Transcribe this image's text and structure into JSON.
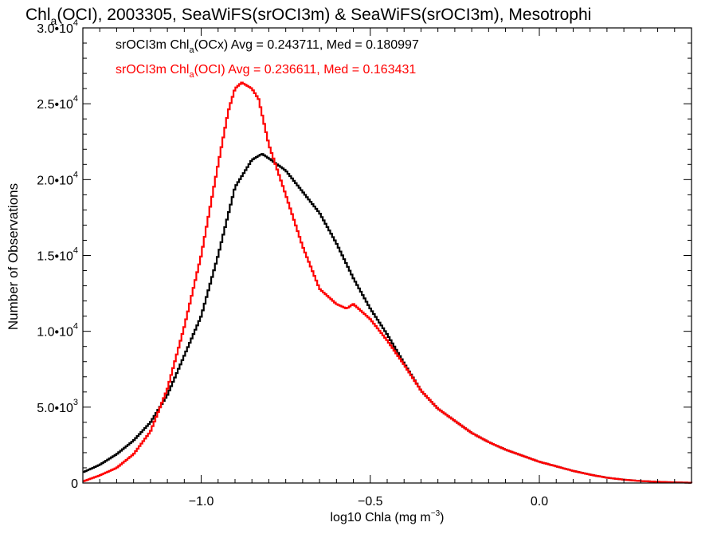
{
  "chart_data": {
    "type": "line",
    "title": {
      "pre": "Chl",
      "sub": "a",
      "post": "(OCI), 2003305, SeaWiFS(srOCI3m) & SeaWiFS(srOCI3m), Mesotrophi"
    },
    "xlabel": {
      "pre": "log10 Chla (mg m",
      "sup": "−3",
      "post": ")"
    },
    "ylabel": "Number of Observations",
    "xlim": [
      -1.35,
      0.45
    ],
    "ylim": [
      0,
      30000
    ],
    "x_ticks": [
      {
        "value": -1.0,
        "label": "−1.0"
      },
      {
        "value": -0.5,
        "label": "−0.5"
      },
      {
        "value": 0.0,
        "label": "0.0"
      }
    ],
    "y_ticks": [
      {
        "value": 0,
        "mant": "0",
        "exp": ""
      },
      {
        "value": 5000,
        "mant": "5.0•10",
        "exp": "3"
      },
      {
        "value": 10000,
        "mant": "1.0•10",
        "exp": "4"
      },
      {
        "value": 15000,
        "mant": "1.5•10",
        "exp": "4"
      },
      {
        "value": 20000,
        "mant": "2.0•10",
        "exp": "4"
      },
      {
        "value": 25000,
        "mant": "2.5•10",
        "exp": "4"
      },
      {
        "value": 30000,
        "mant": "3.0•10",
        "exp": "4"
      }
    ],
    "grid": false,
    "series": [
      {
        "legend": {
          "pre": "srOCI3m Chl",
          "sub": "a",
          "post": "(OCx) Avg = 0.243711, Med = 0.180997"
        },
        "color": "#000000",
        "x": [
          -1.35,
          -1.3,
          -1.25,
          -1.2,
          -1.15,
          -1.1,
          -1.05,
          -1.0,
          -0.95,
          -0.9,
          -0.85,
          -0.82,
          -0.8,
          -0.75,
          -0.7,
          -0.65,
          -0.6,
          -0.55,
          -0.5,
          -0.45,
          -0.4,
          -0.35,
          -0.3,
          -0.25,
          -0.2,
          -0.15,
          -0.1,
          -0.05,
          0.0,
          0.05,
          0.1,
          0.15,
          0.2,
          0.25,
          0.3,
          0.35,
          0.4,
          0.45
        ],
        "y": [
          700,
          1200,
          1900,
          2800,
          4000,
          5800,
          8400,
          11000,
          15000,
          19500,
          21300,
          21700,
          21400,
          20600,
          19200,
          17800,
          15800,
          13500,
          11500,
          9800,
          7900,
          6100,
          4900,
          4100,
          3300,
          2700,
          2200,
          1800,
          1400,
          1100,
          800,
          550,
          350,
          220,
          130,
          80,
          40,
          20
        ]
      },
      {
        "legend": {
          "pre": "srOCI3m Chl",
          "sub": "a",
          "post": "(OCI) Avg = 0.236611, Med = 0.163431"
        },
        "color": "#ff0000",
        "x": [
          -1.35,
          -1.3,
          -1.25,
          -1.2,
          -1.15,
          -1.1,
          -1.05,
          -1.0,
          -0.95,
          -0.92,
          -0.9,
          -0.88,
          -0.85,
          -0.83,
          -0.8,
          -0.75,
          -0.7,
          -0.65,
          -0.6,
          -0.57,
          -0.55,
          -0.5,
          -0.45,
          -0.4,
          -0.35,
          -0.3,
          -0.25,
          -0.2,
          -0.15,
          -0.1,
          -0.05,
          0.0,
          0.05,
          0.1,
          0.15,
          0.2,
          0.25,
          0.3,
          0.35,
          0.4,
          0.45
        ],
        "y": [
          100,
          500,
          1000,
          1900,
          3400,
          6200,
          10300,
          15000,
          21000,
          24500,
          26000,
          26400,
          26000,
          25300,
          22300,
          19000,
          15600,
          12800,
          11800,
          11500,
          11800,
          10800,
          9400,
          7800,
          6100,
          4900,
          4100,
          3300,
          2700,
          2200,
          1800,
          1400,
          1100,
          800,
          550,
          350,
          220,
          130,
          80,
          40,
          20
        ]
      }
    ]
  }
}
